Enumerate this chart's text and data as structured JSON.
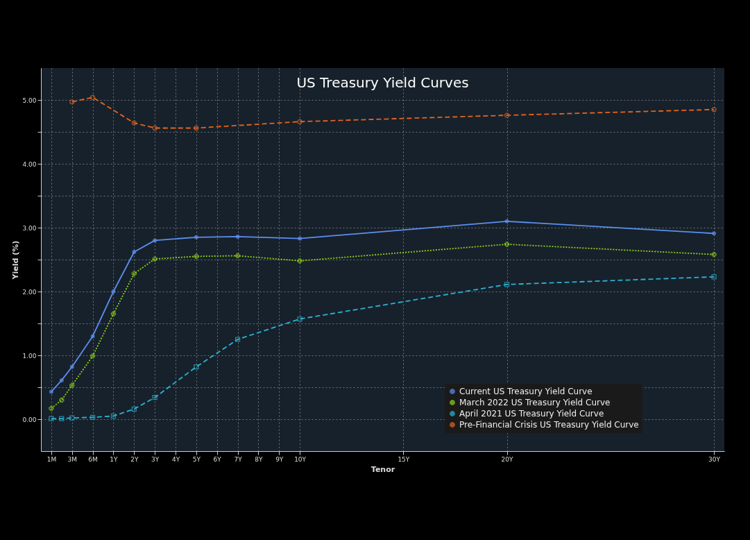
{
  "chart_data": {
    "type": "line",
    "title": "US Treasury Yield Curves",
    "xlabel": "Tenor",
    "ylabel": "Yield (%)",
    "categories": [
      "1M",
      null,
      "3M",
      null,
      "6M",
      null,
      "1Y",
      null,
      "2Y",
      null,
      "3Y",
      null,
      "4Y",
      null,
      "5Y",
      null,
      "6Y",
      null,
      "7Y",
      null,
      "8Y",
      null,
      "9Y",
      null,
      "10Y",
      null,
      null,
      null,
      null,
      null,
      null,
      null,
      null,
      null,
      "15Y",
      null,
      null,
      null,
      null,
      null,
      null,
      null,
      null,
      null,
      "20Y",
      null,
      null,
      null,
      null,
      null,
      null,
      null,
      null,
      null,
      null,
      null,
      null,
      null,
      null,
      null,
      null,
      null,
      null,
      null,
      "30Y"
    ],
    "series": [
      {
        "name": "Current US Treasury Yield Curve",
        "color": "#5b8ff0",
        "line_style": "solid",
        "marker": "circle",
        "values": [
          0.43,
          0.61,
          0.82,
          null,
          1.3,
          null,
          2.0,
          null,
          2.62,
          null,
          2.8,
          null,
          null,
          null,
          2.85,
          null,
          null,
          null,
          2.86,
          null,
          null,
          null,
          null,
          null,
          2.83,
          null,
          null,
          null,
          null,
          null,
          null,
          null,
          null,
          null,
          null,
          null,
          null,
          null,
          null,
          null,
          null,
          null,
          null,
          null,
          3.1,
          null,
          null,
          null,
          null,
          null,
          null,
          null,
          null,
          null,
          null,
          null,
          null,
          null,
          null,
          null,
          null,
          null,
          null,
          null,
          2.91
        ]
      },
      {
        "name": "March 2022 US Treasury Yield Curve",
        "color": "#8fd11a",
        "line_style": "dotted",
        "marker": "cross",
        "values": [
          0.17,
          0.3,
          0.53,
          null,
          0.99,
          null,
          1.65,
          null,
          2.28,
          null,
          2.51,
          null,
          null,
          null,
          2.55,
          null,
          null,
          null,
          2.56,
          null,
          null,
          null,
          null,
          null,
          2.48,
          null,
          null,
          null,
          null,
          null,
          null,
          null,
          null,
          null,
          null,
          null,
          null,
          null,
          null,
          null,
          null,
          null,
          null,
          null,
          2.74,
          null,
          null,
          null,
          null,
          null,
          null,
          null,
          null,
          null,
          null,
          null,
          null,
          null,
          null,
          null,
          null,
          null,
          null,
          null,
          2.58
        ]
      },
      {
        "name": "April 2021 US Treasury Yield Curve",
        "color": "#2ab4d4",
        "line_style": "dashed",
        "marker": "square",
        "values": [
          0.01,
          0.01,
          0.02,
          null,
          0.03,
          null,
          0.05,
          null,
          0.16,
          null,
          0.34,
          null,
          null,
          null,
          0.82,
          null,
          null,
          null,
          1.25,
          null,
          null,
          null,
          null,
          null,
          1.57,
          null,
          null,
          null,
          null,
          null,
          null,
          null,
          null,
          null,
          null,
          null,
          null,
          null,
          null,
          null,
          null,
          null,
          null,
          null,
          2.11,
          null,
          null,
          null,
          null,
          null,
          null,
          null,
          null,
          null,
          null,
          null,
          null,
          null,
          null,
          null,
          null,
          null,
          null,
          null,
          2.23
        ]
      },
      {
        "name": "Pre-Financial Crisis US Treasury Yield Curve",
        "color": "#e8641e",
        "line_style": "dashed",
        "marker": "circle",
        "values": [
          null,
          null,
          4.97,
          null,
          5.04,
          null,
          null,
          null,
          4.64,
          null,
          4.56,
          null,
          null,
          null,
          4.56,
          null,
          null,
          null,
          null,
          null,
          null,
          null,
          null,
          null,
          4.66,
          null,
          null,
          null,
          null,
          null,
          null,
          null,
          null,
          null,
          null,
          null,
          null,
          null,
          null,
          null,
          null,
          null,
          null,
          null,
          4.76,
          null,
          null,
          null,
          null,
          null,
          null,
          null,
          null,
          null,
          null,
          null,
          null,
          null,
          null,
          null,
          null,
          null,
          null,
          null,
          4.85
        ]
      }
    ],
    "ylim": [
      -0.5,
      5.5
    ],
    "yticks": [
      {
        "value": 0,
        "label": "0.00"
      },
      {
        "value": 0.5,
        "label": null
      },
      {
        "value": 1,
        "label": "1.00"
      },
      {
        "value": 1.5,
        "label": null
      },
      {
        "value": 2,
        "label": "2.00"
      },
      {
        "value": 2.5,
        "label": null
      },
      {
        "value": 3,
        "label": "3.00"
      },
      {
        "value": 3.5,
        "label": null
      },
      {
        "value": 4,
        "label": "4.00"
      },
      {
        "value": 4.5,
        "label": null
      },
      {
        "value": 5,
        "label": "5.00"
      }
    ],
    "grid": true,
    "legend": "bottom right"
  }
}
